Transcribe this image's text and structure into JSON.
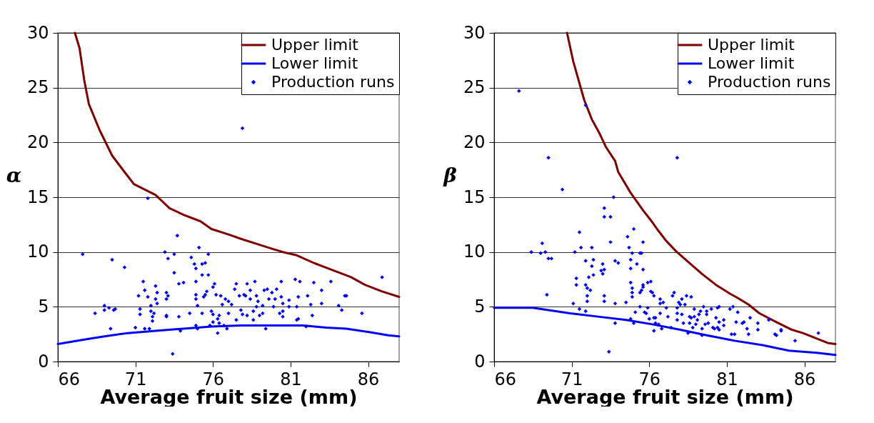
{
  "chart_data": [
    {
      "type": "scatter",
      "xlabel": "Average fruit size (mm)",
      "ylabel": "α",
      "xlim": [
        66,
        88
      ],
      "ylim": [
        0,
        30
      ],
      "xticks": [
        66,
        71,
        76,
        81,
        86
      ],
      "yticks": [
        0,
        5,
        10,
        15,
        20,
        25,
        30
      ],
      "grid": "y",
      "legend": "top right",
      "series": [
        {
          "name": "Upper limit",
          "type": "line",
          "color": "#800000",
          "x": [
            67.1,
            67.4,
            67.7,
            68.0,
            68.7,
            69.5,
            70.3,
            70.9,
            72.3,
            73.2,
            74.1,
            75.2,
            75.9,
            77.0,
            77.8,
            78.9,
            79.8,
            80.5,
            81.4,
            82.5,
            83.6,
            84.9,
            85.8,
            86.9,
            88.0
          ],
          "values": [
            30,
            28.6,
            25.7,
            23.5,
            21.1,
            18.8,
            17.3,
            16.2,
            15.2,
            14.0,
            13.4,
            12.8,
            12.1,
            11.6,
            11.2,
            10.7,
            10.3,
            10.0,
            9.7,
            9.0,
            8.4,
            7.7,
            7.0,
            6.4,
            5.9
          ]
        },
        {
          "name": "Lower limit",
          "type": "line",
          "color": "#0000ff",
          "x": [
            66,
            67.7,
            69.0,
            70.5,
            72.3,
            74.1,
            75.9,
            77.8,
            79.6,
            81.8,
            83.3,
            84.6,
            86.0,
            87.3,
            88
          ],
          "values": [
            1.6,
            2.0,
            2.3,
            2.6,
            2.8,
            3.0,
            3.2,
            3.3,
            3.3,
            3.3,
            3.1,
            3.0,
            2.7,
            2.4,
            2.3
          ]
        },
        {
          "name": "Production runs",
          "type": "scatter",
          "marker": "diamond",
          "color": "#0000ff",
          "x": [
            67.6,
            68.4,
            69.0,
            69.0,
            69.5,
            69.3,
            69.6,
            69.7,
            69.4,
            70.3,
            71.0,
            71.2,
            71.3,
            71.3,
            71.5,
            71.6,
            71.8,
            71.8,
            71.6,
            71.9,
            72.0,
            72.0,
            72.1,
            72.1,
            72.2,
            72.3,
            72.3,
            72.4,
            72.4,
            72.9,
            73.1,
            73.0,
            73.0,
            73.1,
            73.0,
            73.0,
            73.5,
            73.5,
            73.4,
            73.7,
            73.8,
            73.9,
            73.8,
            74.1,
            74.5,
            74.6,
            74.8,
            74.9,
            74.9,
            74.9,
            74.9,
            75.0,
            74.9,
            75.0,
            75.1,
            75.3,
            75.3,
            75.5,
            75.3,
            75.4,
            75.5,
            75.6,
            75.7,
            75.7,
            75.8,
            75.9,
            76.0,
            76.0,
            76.1,
            76.0,
            76.2,
            76.3,
            76.3,
            76.4,
            76.4,
            76.5,
            76.6,
            76.7,
            76.8,
            76.9,
            77.0,
            77.0,
            77.2,
            77.4,
            77.5,
            77.5,
            77.7,
            77.8,
            77.9,
            77.9,
            78.0,
            78.1,
            78.2,
            78.2,
            78.4,
            78.4,
            78.6,
            78.6,
            78.7,
            78.8,
            78.8,
            78.9,
            79.0,
            79.2,
            79.2,
            79.3,
            79.4,
            79.5,
            79.6,
            79.8,
            79.9,
            80.0,
            80.1,
            80.3,
            80.4,
            80.4,
            80.5,
            80.5,
            80.5,
            80.9,
            80.9,
            81.3,
            81.4,
            81.4,
            81.5,
            81.5,
            81.6,
            82.0,
            82.1,
            82.3,
            82.4,
            82.5,
            83.0,
            83.0,
            83.6,
            84.1,
            84.3,
            84.5,
            84.6,
            85.6,
            86.9
          ],
          "values": [
            9.8,
            4.4,
            4.7,
            5.1,
            9.3,
            4.9,
            4.7,
            4.8,
            3.0,
            8.6,
            3.1,
            6.0,
            4.8,
            4.3,
            7.3,
            6.5,
            14.9,
            5.9,
            3.0,
            3.0,
            5.1,
            4.6,
            4.1,
            3.7,
            4.4,
            6.9,
            5.7,
            5.3,
            6.3,
            10.0,
            9.4,
            6.3,
            5.7,
            6.0,
            4.2,
            4.1,
            9.8,
            8.1,
            0.7,
            11.5,
            4.1,
            2.8,
            7.1,
            7.2,
            4.4,
            9.5,
            8.9,
            8.5,
            7.3,
            6.1,
            5.7,
            5.1,
            3.3,
            3.0,
            10.4,
            7.9,
            8.9,
            9.0,
            4.4,
            5.9,
            6.1,
            6.4,
            9.8,
            7.9,
            3.3,
            4.6,
            4.3,
            6.8,
            7.1,
            3.6,
            6.1,
            3.9,
            2.6,
            4.2,
            3.5,
            6.0,
            5.2,
            3.3,
            5.7,
            3.0,
            5.5,
            4.4,
            5.2,
            6.6,
            7.1,
            3.8,
            6.0,
            4.7,
            4.3,
            21.3,
            6.1,
            6.0,
            7.1,
            4.2,
            5.7,
            6.5,
            3.8,
            4.6,
            7.3,
            5.0,
            6.0,
            5.5,
            4.2,
            4.4,
            5.1,
            6.5,
            3.0,
            6.6,
            5.7,
            6.3,
            5.0,
            5.7,
            6.6,
            4.4,
            7.3,
            5.9,
            5.3,
            4.1,
            4.6,
            5.6,
            5.0,
            7.5,
            5.0,
            3.8,
            3.9,
            5.9,
            7.3,
            3.2,
            6.0,
            5.2,
            4.2,
            7.2,
            6.5,
            5.3,
            7.3,
            5.1,
            4.7,
            6.0,
            6.0,
            4.4,
            7.7
          ]
        }
      ]
    },
    {
      "type": "scatter",
      "xlabel": "Average fruit size (mm)",
      "ylabel": "β",
      "xlim": [
        66,
        88
      ],
      "ylim": [
        0,
        30
      ],
      "xticks": [
        66,
        71,
        76,
        81,
        86
      ],
      "yticks": [
        0,
        5,
        10,
        15,
        20,
        25,
        30
      ],
      "grid": "y",
      "legend": "top right",
      "series": [
        {
          "name": "Upper limit",
          "type": "line",
          "color": "#800000",
          "x": [
            70.7,
            71.1,
            71.8,
            72.3,
            72.8,
            73.2,
            73.8,
            74.0,
            74.8,
            75.6,
            76.1,
            76.5,
            77.1,
            77.7,
            78.5,
            79.4,
            80.3,
            81.2,
            81.7,
            82.4,
            83.1,
            84.2,
            85.2,
            85.9,
            86.8,
            87.5,
            88.0
          ],
          "values": [
            30,
            27.4,
            23.9,
            22.1,
            20.8,
            19.6,
            18.3,
            17.3,
            15.4,
            13.8,
            12.9,
            12.1,
            11.0,
            10.1,
            9.1,
            8.0,
            7.0,
            6.2,
            5.8,
            5.2,
            4.4,
            3.6,
            2.9,
            2.6,
            2.1,
            1.7,
            1.6
          ]
        },
        {
          "name": "Lower limit",
          "type": "line",
          "color": "#0000ff",
          "x": [
            66,
            68.5,
            69.5,
            70.9,
            72.7,
            74.5,
            76.2,
            78.0,
            79.7,
            81.5,
            83.3,
            85.0,
            86.8,
            88
          ],
          "values": [
            4.9,
            4.9,
            4.7,
            4.4,
            4.1,
            3.8,
            3.4,
            2.9,
            2.4,
            1.9,
            1.5,
            1.0,
            0.8,
            0.6
          ]
        },
        {
          "name": "Production runs",
          "type": "scatter",
          "marker": "diamond",
          "color": "#0000ff",
          "x": [
            67.6,
            68.4,
            69.0,
            69.1,
            69.3,
            69.4,
            69.5,
            69.5,
            69.7,
            70.4,
            71.1,
            71.2,
            71.3,
            71.3,
            71.5,
            71.6,
            71.5,
            71.9,
            71.9,
            71.9,
            72.0,
            72.0,
            72.0,
            71.9,
            72.1,
            72.2,
            72.3,
            72.3,
            72.4,
            72.4,
            72.9,
            73.0,
            73.1,
            73.1,
            73.0,
            73.1,
            73.1,
            73.1,
            73.4,
            73.5,
            73.5,
            73.7,
            73.8,
            73.8,
            73.8,
            74.0,
            74.5,
            74.6,
            74.7,
            74.8,
            74.8,
            74.8,
            74.9,
            74.9,
            74.9,
            74.9,
            74.8,
            75.0,
            75.0,
            75.1,
            75.2,
            75.4,
            75.5,
            75.4,
            75.4,
            75.5,
            75.6,
            75.6,
            75.6,
            75.6,
            75.7,
            75.8,
            75.9,
            76.0,
            75.9,
            76.1,
            76.1,
            76.2,
            76.3,
            76.3,
            76.3,
            76.4,
            76.4,
            76.6,
            76.7,
            76.7,
            76.7,
            76.9,
            76.8,
            77.1,
            77.2,
            77.4,
            77.5,
            77.6,
            77.8,
            77.8,
            77.8,
            77.8,
            77.9,
            78.0,
            78.1,
            78.1,
            78.2,
            78.3,
            78.4,
            78.5,
            78.6,
            78.6,
            78.7,
            78.7,
            78.8,
            78.9,
            78.9,
            79.0,
            79.1,
            79.2,
            79.3,
            79.4,
            79.4,
            79.5,
            79.6,
            79.7,
            79.7,
            79.8,
            80.0,
            80.1,
            80.2,
            80.3,
            80.4,
            80.4,
            80.5,
            80.5,
            80.5,
            80.8,
            80.8,
            81.2,
            81.3,
            81.4,
            81.5,
            81.6,
            81.7,
            82.0,
            82.1,
            82.3,
            82.4,
            82.5,
            83.0,
            83.0,
            83.7,
            84.1,
            84.2,
            84.5,
            84.5,
            85.4,
            86.9
          ],
          "values": [
            24.7,
            10.0,
            9.9,
            10.8,
            10.0,
            6.1,
            18.6,
            9.4,
            9.4,
            15.7,
            5.3,
            10.0,
            7.6,
            7.0,
            11.8,
            10.4,
            4.8,
            23.4,
            9.2,
            7.0,
            6.7,
            6.0,
            5.5,
            4.6,
            7.7,
            6.5,
            10.4,
            8.7,
            9.3,
            7.9,
            8.3,
            8.9,
            14.0,
            13.2,
            8.0,
            8.4,
            6.0,
            5.5,
            0.9,
            13.2,
            10.9,
            15.0,
            5.3,
            9.2,
            3.5,
            9.0,
            5.4,
            11.4,
            10.4,
            9.3,
            8.5,
            7.2,
            9.9,
            6.7,
            6.3,
            5.9,
            3.9,
            12.1,
            3.5,
            4.5,
            8.9,
            9.9,
            9.9,
            5.0,
            6.3,
            6.5,
            6.8,
            10.9,
            7.0,
            8.4,
            4.5,
            4.4,
            4.9,
            3.9,
            7.2,
            7.3,
            6.4,
            6.3,
            4.0,
            2.8,
            6.0,
            4.0,
            3.5,
            3.4,
            5.3,
            4.4,
            5.7,
            5.4,
            3.0,
            4.9,
            4.1,
            3.1,
            6.0,
            6.3,
            4.9,
            4.4,
            3.8,
            18.6,
            5.4,
            5.2,
            4.3,
            5.7,
            3.5,
            5.2,
            6.0,
            2.6,
            4.1,
            3.5,
            5.9,
            4.0,
            3.1,
            4.8,
            4.1,
            3.4,
            3.8,
            4.3,
            4.6,
            3.0,
            2.4,
            5.0,
            3.4,
            4.3,
            4.6,
            3.5,
            4.8,
            3.1,
            3.0,
            4.0,
            4.9,
            3.1,
            2.9,
            5.0,
            3.6,
            3.8,
            3.3,
            4.8,
            2.5,
            5.0,
            2.5,
            3.6,
            4.5,
            3.5,
            3.6,
            3.0,
            2.5,
            4.0,
            2.9,
            3.5,
            3.8,
            2.5,
            2.4,
            2.9,
            2.8,
            1.9,
            2.6
          ]
        }
      ]
    }
  ]
}
